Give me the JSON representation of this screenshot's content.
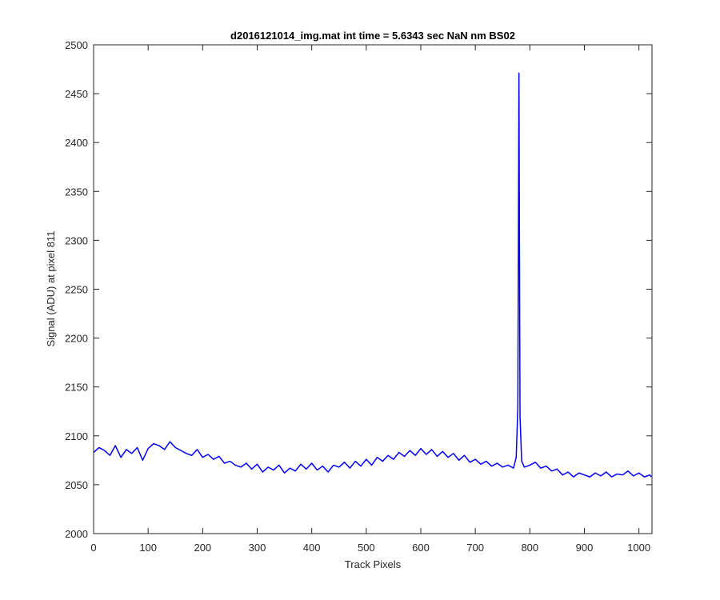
{
  "chart_data": {
    "type": "line",
    "title": "d2016121014_img.mat int time = 5.6343 sec  NaN nm BS02",
    "xlabel": "Track Pixels",
    "ylabel": "Signal (ADU) at pixel 811",
    "xlim": [
      0,
      1024
    ],
    "ylim": [
      2000,
      2500
    ],
    "xticks": [
      0,
      100,
      200,
      300,
      400,
      500,
      600,
      700,
      800,
      900,
      1000
    ],
    "yticks": [
      2000,
      2050,
      2100,
      2150,
      2200,
      2250,
      2300,
      2350,
      2400,
      2450,
      2500
    ],
    "grid": false,
    "series_color": "#0000ff",
    "series": [
      {
        "x": [
          0,
          10,
          20,
          30,
          40,
          50,
          60,
          70,
          80,
          90,
          100,
          110,
          120,
          130,
          140,
          150,
          160,
          170,
          180,
          190,
          200,
          210,
          220,
          230,
          240,
          250,
          260,
          270,
          280,
          290,
          300,
          310,
          320,
          330,
          340,
          350,
          360,
          370,
          380,
          390,
          400,
          410,
          420,
          430,
          440,
          450,
          460,
          470,
          480,
          490,
          500,
          510,
          520,
          530,
          540,
          550,
          560,
          570,
          580,
          590,
          600,
          610,
          620,
          630,
          640,
          650,
          660,
          670,
          680,
          690,
          700,
          710,
          720,
          730,
          740,
          750,
          760,
          770,
          775,
          778,
          780,
          782,
          785,
          790,
          800,
          810,
          820,
          830,
          840,
          850,
          860,
          870,
          880,
          890,
          900,
          910,
          920,
          930,
          940,
          950,
          960,
          970,
          980,
          990,
          1000,
          1010,
          1020,
          1023
        ],
        "y": [
          2083,
          2088,
          2085,
          2080,
          2090,
          2078,
          2086,
          2082,
          2088,
          2075,
          2087,
          2092,
          2090,
          2086,
          2094,
          2088,
          2085,
          2082,
          2080,
          2086,
          2078,
          2081,
          2076,
          2079,
          2072,
          2074,
          2070,
          2068,
          2072,
          2066,
          2071,
          2063,
          2068,
          2065,
          2070,
          2062,
          2067,
          2064,
          2071,
          2066,
          2072,
          2065,
          2069,
          2063,
          2070,
          2068,
          2073,
          2067,
          2074,
          2069,
          2076,
          2070,
          2078,
          2074,
          2080,
          2076,
          2083,
          2079,
          2085,
          2080,
          2087,
          2081,
          2086,
          2079,
          2084,
          2078,
          2082,
          2075,
          2080,
          2073,
          2076,
          2071,
          2074,
          2069,
          2072,
          2068,
          2070,
          2067,
          2078,
          2130,
          2471,
          2120,
          2074,
          2068,
          2070,
          2073,
          2067,
          2069,
          2064,
          2066,
          2060,
          2063,
          2058,
          2062,
          2060,
          2058,
          2062,
          2059,
          2063,
          2058,
          2061,
          2060,
          2064,
          2059,
          2062,
          2058,
          2060,
          2058
        ]
      }
    ]
  }
}
